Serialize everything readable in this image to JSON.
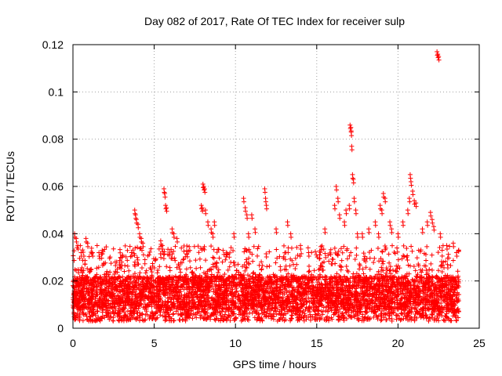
{
  "chart_data": {
    "type": "scatter",
    "title": "Day 082 of 2017, Rate Of TEC Index for receiver sulp",
    "xlabel": "GPS time / hours",
    "ylabel": "ROTI / TECUs",
    "xlim": [
      0,
      25
    ],
    "ylim": [
      0,
      0.12
    ],
    "xticks": [
      0,
      5,
      10,
      15,
      20,
      25
    ],
    "yticks": [
      0,
      0.02,
      0.04,
      0.06,
      0.08,
      0.1,
      0.12
    ],
    "xtick_labels": [
      "0",
      "5",
      "10",
      "15",
      "20",
      "25"
    ],
    "ytick_labels": [
      "0",
      "0.02",
      "0.04",
      "0.06",
      "0.08",
      "0.1",
      "0.12"
    ],
    "grid": true,
    "marker": "plus",
    "color": "#ff0000",
    "series": [
      {
        "name": "ROTI",
        "dense_band": {
          "x_range": [
            0,
            23.75
          ],
          "y_low": 0.003,
          "y_typical": [
            0.008,
            0.022
          ],
          "y_upper": 0.035
        },
        "points": [
          [
            0.1,
            0.04
          ],
          [
            0.2,
            0.038
          ],
          [
            0.3,
            0.035
          ],
          [
            0.5,
            0.032
          ],
          [
            0.8,
            0.038
          ],
          [
            0.9,
            0.036
          ],
          [
            1.2,
            0.032
          ],
          [
            1.6,
            0.032
          ],
          [
            1.8,
            0.033
          ],
          [
            2.6,
            0.028
          ],
          [
            3.0,
            0.028
          ],
          [
            3.6,
            0.032
          ],
          [
            3.8,
            0.05
          ],
          [
            3.85,
            0.048
          ],
          [
            3.9,
            0.046
          ],
          [
            4.0,
            0.044
          ],
          [
            4.1,
            0.04
          ],
          [
            4.2,
            0.038
          ],
          [
            4.3,
            0.036
          ],
          [
            5.4,
            0.037
          ],
          [
            5.5,
            0.035
          ],
          [
            5.6,
            0.059
          ],
          [
            5.65,
            0.057
          ],
          [
            5.7,
            0.052
          ],
          [
            5.75,
            0.051
          ],
          [
            6.1,
            0.042
          ],
          [
            6.2,
            0.04
          ],
          [
            6.4,
            0.038
          ],
          [
            7.9,
            0.052
          ],
          [
            7.95,
            0.051
          ],
          [
            8.0,
            0.061
          ],
          [
            8.05,
            0.06
          ],
          [
            8.1,
            0.059
          ],
          [
            8.15,
            0.05
          ],
          [
            8.3,
            0.045
          ],
          [
            8.5,
            0.042
          ],
          [
            8.6,
            0.04
          ],
          [
            8.7,
            0.045
          ],
          [
            9.9,
            0.04
          ],
          [
            10.5,
            0.055
          ],
          [
            10.6,
            0.051
          ],
          [
            10.7,
            0.048
          ],
          [
            10.8,
            0.04
          ],
          [
            11.0,
            0.048
          ],
          [
            11.2,
            0.042
          ],
          [
            11.8,
            0.059
          ],
          [
            11.85,
            0.055
          ],
          [
            11.9,
            0.052
          ],
          [
            12.5,
            0.042
          ],
          [
            13.2,
            0.045
          ],
          [
            13.4,
            0.04
          ],
          [
            14.0,
            0.035
          ],
          [
            14.5,
            0.032
          ],
          [
            15.5,
            0.042
          ],
          [
            16.1,
            0.052
          ],
          [
            16.2,
            0.06
          ],
          [
            16.3,
            0.055
          ],
          [
            16.4,
            0.048
          ],
          [
            16.7,
            0.045
          ],
          [
            16.8,
            0.05
          ],
          [
            17.0,
            0.052
          ],
          [
            17.05,
            0.086
          ],
          [
            17.1,
            0.085
          ],
          [
            17.12,
            0.083
          ],
          [
            17.15,
            0.077
          ],
          [
            17.2,
            0.065
          ],
          [
            17.25,
            0.063
          ],
          [
            17.3,
            0.055
          ],
          [
            17.4,
            0.05
          ],
          [
            17.5,
            0.04
          ],
          [
            17.8,
            0.04
          ],
          [
            18.2,
            0.042
          ],
          [
            18.6,
            0.045
          ],
          [
            18.8,
            0.04
          ],
          [
            18.9,
            0.052
          ],
          [
            19.0,
            0.05
          ],
          [
            19.1,
            0.057
          ],
          [
            19.2,
            0.055
          ],
          [
            19.5,
            0.045
          ],
          [
            19.6,
            0.042
          ],
          [
            20.0,
            0.04
          ],
          [
            20.3,
            0.045
          ],
          [
            20.6,
            0.05
          ],
          [
            20.7,
            0.055
          ],
          [
            20.75,
            0.065
          ],
          [
            20.8,
            0.062
          ],
          [
            20.9,
            0.058
          ],
          [
            21.0,
            0.054
          ],
          [
            21.1,
            0.053
          ],
          [
            21.5,
            0.042
          ],
          [
            21.8,
            0.045
          ],
          [
            22.0,
            0.049
          ],
          [
            22.1,
            0.046
          ],
          [
            22.2,
            0.043
          ],
          [
            22.4,
            0.117
          ],
          [
            22.45,
            0.116
          ],
          [
            22.5,
            0.115
          ],
          [
            22.6,
            0.04
          ],
          [
            23.0,
            0.035
          ],
          [
            23.4,
            0.036
          ],
          [
            23.6,
            0.032
          ]
        ]
      }
    ]
  }
}
